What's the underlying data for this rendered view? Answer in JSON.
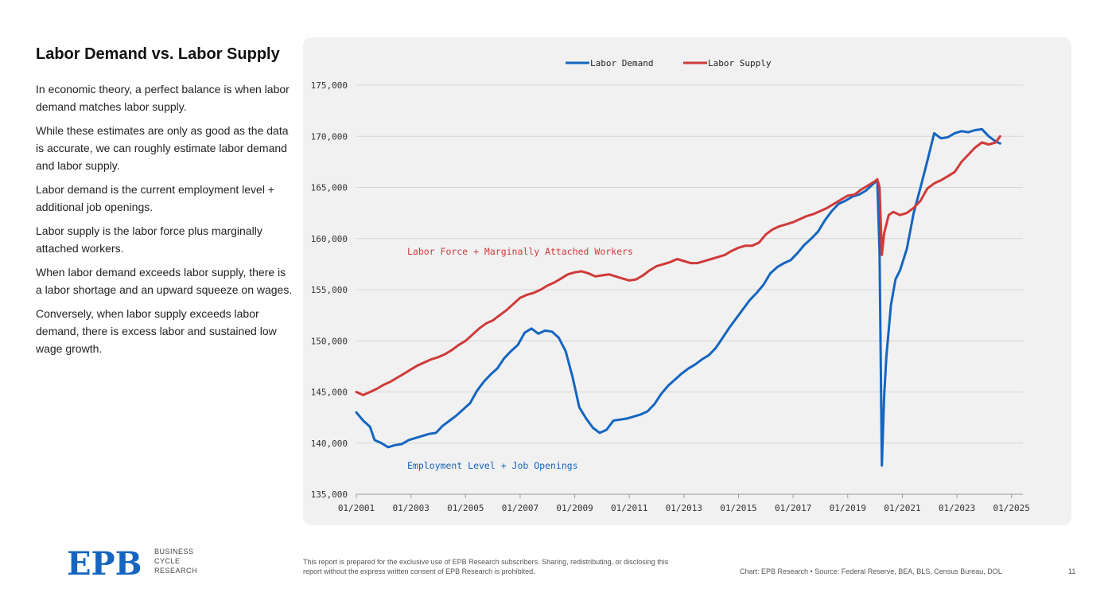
{
  "sidebar": {
    "title": "Labor Demand vs. Labor Supply",
    "paragraphs": [
      "In economic theory, a perfect balance is when labor demand matches labor supply.",
      "While these estimates are only as good as the data is accurate, we can roughly estimate labor demand and labor supply.",
      "Labor demand is the current employment level + additional job openings.",
      "Labor supply is the labor force plus marginally attached workers.",
      "When labor demand exceeds labor supply, there is a labor shortage and an upward squeeze on wages.",
      "Conversely, when labor supply exceeds labor demand, there is excess labor and sustained low wage growth."
    ]
  },
  "footer": {
    "logo_lines": [
      "BUSINESS",
      "CYCLE",
      "RESEARCH"
    ],
    "logo_mark": "EPB",
    "disclaimer": "This report is prepared for the exclusive use of EPB Research subscribers. Sharing, redistributing, or disclosing this report without the express written consent of EPB Research is prohibited.",
    "source": "Chart: EPB Research  •  Source: Federal Reserve, BEA, BLS, Census Bureau, DOL",
    "page": "11"
  },
  "chart_data": {
    "type": "line",
    "title": "",
    "xlabel": "",
    "ylabel": "",
    "ylim": [
      135000,
      175000
    ],
    "yticks": [
      135000,
      140000,
      145000,
      150000,
      155000,
      160000,
      165000,
      170000,
      175000
    ],
    "ytick_labels": [
      "135,000",
      "140,000",
      "145,000",
      "150,000",
      "155,000",
      "160,000",
      "165,000",
      "170,000",
      "175,000"
    ],
    "xlim": [
      "2001-01",
      "2025-06"
    ],
    "xticks": [
      "2001-01",
      "2003-01",
      "2005-01",
      "2007-01",
      "2009-01",
      "2011-01",
      "2013-01",
      "2015-01",
      "2017-01",
      "2019-01",
      "2021-01",
      "2023-01",
      "2025-01"
    ],
    "xtick_labels": [
      "01/2001",
      "01/2003",
      "01/2005",
      "01/2007",
      "01/2009",
      "01/2011",
      "01/2013",
      "01/2015",
      "01/2017",
      "01/2019",
      "01/2021",
      "01/2023",
      "01/2025"
    ],
    "grid": true,
    "legend_position": "top-center",
    "annotations": [
      {
        "text": "Labor Force + Marginally Attached Workers",
        "series": "Labor Supply",
        "color": "#d03a3a"
      },
      {
        "text": "Employment Level + Job Openings",
        "series": "Labor Demand",
        "color": "#1565c0"
      }
    ],
    "series": [
      {
        "name": "Labor Demand",
        "color": "#1565c0",
        "points": [
          [
            "2001-01",
            143000
          ],
          [
            "2001-04",
            142200
          ],
          [
            "2001-07",
            141600
          ],
          [
            "2001-09",
            140300
          ],
          [
            "2001-12",
            140000
          ],
          [
            "2002-03",
            139600
          ],
          [
            "2002-06",
            139800
          ],
          [
            "2002-09",
            139900
          ],
          [
            "2002-12",
            140300
          ],
          [
            "2003-03",
            140500
          ],
          [
            "2003-06",
            140700
          ],
          [
            "2003-09",
            140900
          ],
          [
            "2003-12",
            141000
          ],
          [
            "2004-03",
            141700
          ],
          [
            "2004-06",
            142200
          ],
          [
            "2004-09",
            142700
          ],
          [
            "2004-12",
            143300
          ],
          [
            "2005-03",
            143900
          ],
          [
            "2005-06",
            145100
          ],
          [
            "2005-09",
            146000
          ],
          [
            "2005-12",
            146700
          ],
          [
            "2006-03",
            147300
          ],
          [
            "2006-06",
            148300
          ],
          [
            "2006-09",
            149000
          ],
          [
            "2006-12",
            149600
          ],
          [
            "2007-03",
            150800
          ],
          [
            "2007-06",
            151200
          ],
          [
            "2007-09",
            150700
          ],
          [
            "2007-12",
            151000
          ],
          [
            "2008-03",
            150900
          ],
          [
            "2008-06",
            150300
          ],
          [
            "2008-09",
            149000
          ],
          [
            "2008-12",
            146500
          ],
          [
            "2009-03",
            143500
          ],
          [
            "2009-06",
            142400
          ],
          [
            "2009-09",
            141500
          ],
          [
            "2009-12",
            141000
          ],
          [
            "2010-03",
            141300
          ],
          [
            "2010-06",
            142200
          ],
          [
            "2010-09",
            142300
          ],
          [
            "2010-12",
            142400
          ],
          [
            "2011-03",
            142600
          ],
          [
            "2011-06",
            142800
          ],
          [
            "2011-09",
            143100
          ],
          [
            "2011-12",
            143800
          ],
          [
            "2012-03",
            144800
          ],
          [
            "2012-06",
            145600
          ],
          [
            "2012-09",
            146200
          ],
          [
            "2012-12",
            146800
          ],
          [
            "2013-03",
            147300
          ],
          [
            "2013-06",
            147700
          ],
          [
            "2013-09",
            148200
          ],
          [
            "2013-12",
            148600
          ],
          [
            "2014-03",
            149300
          ],
          [
            "2014-06",
            150300
          ],
          [
            "2014-09",
            151300
          ],
          [
            "2014-12",
            152200
          ],
          [
            "2015-03",
            153100
          ],
          [
            "2015-06",
            154000
          ],
          [
            "2015-09",
            154700
          ],
          [
            "2015-12",
            155500
          ],
          [
            "2016-03",
            156600
          ],
          [
            "2016-06",
            157200
          ],
          [
            "2016-09",
            157600
          ],
          [
            "2016-12",
            157900
          ],
          [
            "2017-03",
            158600
          ],
          [
            "2017-06",
            159400
          ],
          [
            "2017-09",
            160000
          ],
          [
            "2017-12",
            160700
          ],
          [
            "2018-03",
            161800
          ],
          [
            "2018-06",
            162700
          ],
          [
            "2018-09",
            163400
          ],
          [
            "2018-12",
            163700
          ],
          [
            "2019-03",
            164100
          ],
          [
            "2019-06",
            164300
          ],
          [
            "2019-09",
            164700
          ],
          [
            "2019-12",
            165300
          ],
          [
            "2020-02",
            165700
          ],
          [
            "2020-03",
            158600
          ],
          [
            "2020-04",
            137800
          ],
          [
            "2020-05",
            144500
          ],
          [
            "2020-06",
            148500
          ],
          [
            "2020-08",
            153500
          ],
          [
            "2020-10",
            156000
          ],
          [
            "2020-12",
            156900
          ],
          [
            "2021-03",
            159000
          ],
          [
            "2021-06",
            162500
          ],
          [
            "2021-09",
            165000
          ],
          [
            "2021-12",
            167600
          ],
          [
            "2022-03",
            170300
          ],
          [
            "2022-06",
            169800
          ],
          [
            "2022-09",
            169900
          ],
          [
            "2022-12",
            170300
          ],
          [
            "2023-03",
            170500
          ],
          [
            "2023-06",
            170400
          ],
          [
            "2023-09",
            170600
          ],
          [
            "2023-12",
            170700
          ],
          [
            "2024-03",
            170000
          ],
          [
            "2024-06",
            169500
          ],
          [
            "2024-08",
            169300
          ]
        ]
      },
      {
        "name": "Labor Supply",
        "color": "#d03a3a",
        "points": [
          [
            "2001-01",
            145000
          ],
          [
            "2001-04",
            144700
          ],
          [
            "2001-07",
            145000
          ],
          [
            "2001-10",
            145300
          ],
          [
            "2002-01",
            145700
          ],
          [
            "2002-04",
            146000
          ],
          [
            "2002-07",
            146400
          ],
          [
            "2002-10",
            146800
          ],
          [
            "2003-01",
            147200
          ],
          [
            "2003-04",
            147600
          ],
          [
            "2003-07",
            147900
          ],
          [
            "2003-10",
            148200
          ],
          [
            "2004-01",
            148400
          ],
          [
            "2004-04",
            148700
          ],
          [
            "2004-07",
            149100
          ],
          [
            "2004-10",
            149600
          ],
          [
            "2005-01",
            150000
          ],
          [
            "2005-04",
            150600
          ],
          [
            "2005-07",
            151200
          ],
          [
            "2005-10",
            151700
          ],
          [
            "2006-01",
            152000
          ],
          [
            "2006-04",
            152500
          ],
          [
            "2006-07",
            153000
          ],
          [
            "2006-10",
            153600
          ],
          [
            "2007-01",
            154200
          ],
          [
            "2007-04",
            154500
          ],
          [
            "2007-07",
            154700
          ],
          [
            "2007-10",
            155000
          ],
          [
            "2008-01",
            155400
          ],
          [
            "2008-04",
            155700
          ],
          [
            "2008-07",
            156100
          ],
          [
            "2008-10",
            156500
          ],
          [
            "2009-01",
            156700
          ],
          [
            "2009-04",
            156800
          ],
          [
            "2009-07",
            156600
          ],
          [
            "2009-10",
            156300
          ],
          [
            "2010-01",
            156400
          ],
          [
            "2010-04",
            156500
          ],
          [
            "2010-07",
            156300
          ],
          [
            "2010-10",
            156100
          ],
          [
            "2011-01",
            155900
          ],
          [
            "2011-04",
            156000
          ],
          [
            "2011-07",
            156400
          ],
          [
            "2011-10",
            156900
          ],
          [
            "2012-01",
            157300
          ],
          [
            "2012-04",
            157500
          ],
          [
            "2012-07",
            157700
          ],
          [
            "2012-10",
            158000
          ],
          [
            "2013-01",
            157800
          ],
          [
            "2013-04",
            157600
          ],
          [
            "2013-07",
            157600
          ],
          [
            "2013-10",
            157800
          ],
          [
            "2014-01",
            158000
          ],
          [
            "2014-04",
            158200
          ],
          [
            "2014-07",
            158400
          ],
          [
            "2014-10",
            158800
          ],
          [
            "2015-01",
            159100
          ],
          [
            "2015-04",
            159300
          ],
          [
            "2015-07",
            159300
          ],
          [
            "2015-10",
            159600
          ],
          [
            "2016-01",
            160400
          ],
          [
            "2016-04",
            160900
          ],
          [
            "2016-07",
            161200
          ],
          [
            "2016-10",
            161400
          ],
          [
            "2017-01",
            161600
          ],
          [
            "2017-04",
            161900
          ],
          [
            "2017-07",
            162200
          ],
          [
            "2017-10",
            162400
          ],
          [
            "2018-01",
            162700
          ],
          [
            "2018-04",
            163000
          ],
          [
            "2018-07",
            163400
          ],
          [
            "2018-10",
            163800
          ],
          [
            "2019-01",
            164200
          ],
          [
            "2019-04",
            164300
          ],
          [
            "2019-07",
            164800
          ],
          [
            "2019-10",
            165200
          ],
          [
            "2020-01",
            165600
          ],
          [
            "2020-02",
            165800
          ],
          [
            "2020-03",
            165000
          ],
          [
            "2020-04",
            158400
          ],
          [
            "2020-05",
            160500
          ],
          [
            "2020-07",
            162300
          ],
          [
            "2020-09",
            162600
          ],
          [
            "2020-12",
            162300
          ],
          [
            "2021-03",
            162500
          ],
          [
            "2021-06",
            163000
          ],
          [
            "2021-09",
            163700
          ],
          [
            "2021-12",
            164900
          ],
          [
            "2022-03",
            165400
          ],
          [
            "2022-06",
            165700
          ],
          [
            "2022-09",
            166100
          ],
          [
            "2022-12",
            166500
          ],
          [
            "2023-03",
            167500
          ],
          [
            "2023-06",
            168200
          ],
          [
            "2023-09",
            168900
          ],
          [
            "2023-12",
            169400
          ],
          [
            "2024-03",
            169200
          ],
          [
            "2024-06",
            169400
          ],
          [
            "2024-08",
            170000
          ]
        ]
      }
    ]
  }
}
